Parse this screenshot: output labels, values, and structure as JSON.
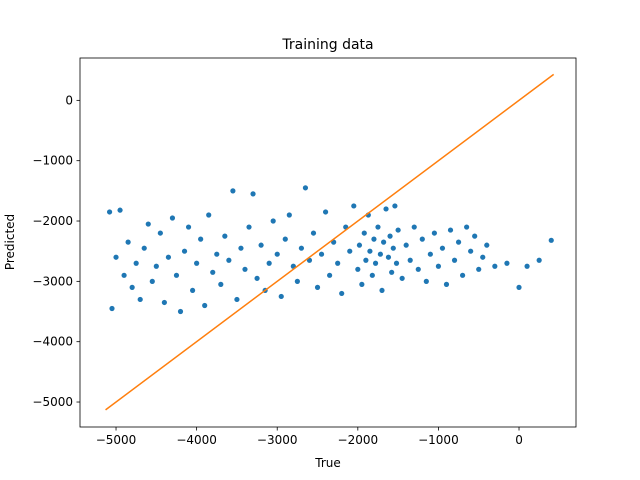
{
  "chart_data": {
    "type": "scatter",
    "title": "Training data",
    "x_label": "True",
    "y_label": "Predicted",
    "xlim": [
      -5447,
      707
    ],
    "ylim": [
      -5414,
      702
    ],
    "xticks": [
      {
        "value": -5000,
        "label": "−5000"
      },
      {
        "value": -4000,
        "label": "−4000"
      },
      {
        "value": -3000,
        "label": "−3000"
      },
      {
        "value": -2000,
        "label": "−2000"
      },
      {
        "value": -1000,
        "label": "−1000"
      },
      0
    ],
    "yticks": [
      0,
      {
        "value": -1000,
        "label": "−1000"
      },
      {
        "value": -2000,
        "label": "−2000"
      },
      {
        "value": -3000,
        "label": "−3000"
      },
      {
        "value": -4000,
        "label": "−4000"
      },
      {
        "value": -5000,
        "label": "−5000"
      }
    ],
    "scatter": {
      "color": "#1f77b4",
      "x": [
        -5080,
        -5050,
        -5000,
        -4950,
        -4900,
        -4850,
        -4800,
        -4750,
        -4700,
        -4650,
        -4600,
        -4550,
        -4500,
        -4450,
        -4400,
        -4350,
        -4300,
        -4250,
        -4200,
        -4150,
        -4100,
        -4050,
        -4000,
        -3950,
        -3900,
        -3850,
        -3800,
        -3750,
        -3700,
        -3650,
        -3600,
        -3550,
        -3500,
        -3450,
        -3400,
        -3350,
        -3300,
        -3250,
        -3200,
        -3150,
        -3100,
        -3050,
        -3000,
        -2950,
        -2900,
        -2850,
        -2800,
        -2750,
        -2700,
        -2650,
        -2600,
        -2550,
        -2500,
        -2450,
        -2400,
        -2350,
        -2300,
        -2250,
        -2200,
        -2150,
        -2100,
        -2050,
        -2000,
        -1980,
        -1950,
        -1920,
        -1900,
        -1870,
        -1850,
        -1820,
        -1800,
        -1780,
        -1750,
        -1720,
        -1700,
        -1680,
        -1650,
        -1620,
        -1600,
        -1580,
        -1560,
        -1540,
        -1520,
        -1500,
        -1450,
        -1400,
        -1350,
        -1300,
        -1250,
        -1200,
        -1150,
        -1100,
        -1050,
        -1000,
        -950,
        -900,
        -850,
        -800,
        -750,
        -700,
        -650,
        -600,
        -550,
        -500,
        -450,
        -400,
        -300,
        -150,
        0,
        100,
        250,
        400
      ],
      "y": [
        -1850,
        -3450,
        -2600,
        -1820,
        -2900,
        -2350,
        -3100,
        -2700,
        -3300,
        -2450,
        -2050,
        -3000,
        -2750,
        -2200,
        -3350,
        -2600,
        -1950,
        -2900,
        -3500,
        -2500,
        -2100,
        -3150,
        -2700,
        -2300,
        -3400,
        -1900,
        -2850,
        -2550,
        -3050,
        -2250,
        -2650,
        -1500,
        -3300,
        -2450,
        -2800,
        -2100,
        -1550,
        -2950,
        -2400,
        -3150,
        -2700,
        -2000,
        -2550,
        -3250,
        -2300,
        -1900,
        -2750,
        -3000,
        -2450,
        -1450,
        -2650,
        -2200,
        -3100,
        -2550,
        -1850,
        -2900,
        -2350,
        -2700,
        -3200,
        -2100,
        -2500,
        -1750,
        -2800,
        -2400,
        -3050,
        -2200,
        -2650,
        -1900,
        -2500,
        -2900,
        -2300,
        -2700,
        -2100,
        -2550,
        -3150,
        -2350,
        -1800,
        -2600,
        -2250,
        -2850,
        -2450,
        -1750,
        -2700,
        -2150,
        -2950,
        -2400,
        -2650,
        -2100,
        -2800,
        -2300,
        -3000,
        -2550,
        -2200,
        -2750,
        -2450,
        -3050,
        -2150,
        -2650,
        -2350,
        -2900,
        -2100,
        -2500,
        -2250,
        -2800,
        -2600,
        -2400,
        -2750,
        -2700,
        -3100,
        -2750,
        -2650,
        -2320
      ]
    },
    "line": {
      "color": "#ff7f0e",
      "x": [
        -5130,
        430
      ],
      "y": [
        -5130,
        430
      ]
    }
  }
}
